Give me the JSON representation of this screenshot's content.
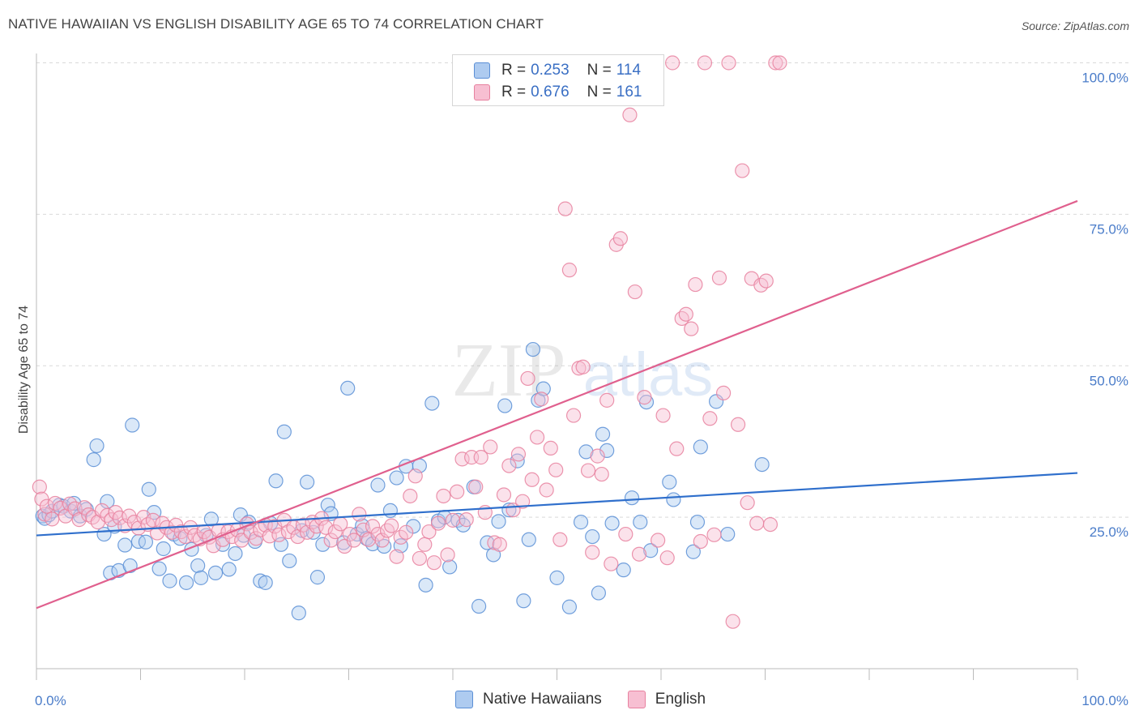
{
  "header": {
    "title": "NATIVE HAWAIIAN VS ENGLISH DISABILITY AGE 65 TO 74 CORRELATION CHART",
    "source": "Source: ZipAtlas.com"
  },
  "watermark": {
    "zip": "ZIP",
    "atlas": "atlas"
  },
  "legend": {
    "rows": [
      {
        "r_label": "R =",
        "r_value": "0.253",
        "n_label": "N =",
        "n_value": "114"
      },
      {
        "r_label": "R =",
        "r_value": "0.676",
        "n_label": "N =",
        "n_value": "161"
      }
    ],
    "bottom": [
      "Native Hawaiians",
      "English"
    ]
  },
  "colors": {
    "blue_fill": "#aecbf0",
    "blue_stroke": "#5b8fd6",
    "blue_line": "#2f6fcc",
    "pink_fill": "#f7bfd2",
    "pink_stroke": "#e7819f",
    "pink_line": "#e0608e",
    "grid": "#d9d9d9",
    "tick_text": "#4a7cc9"
  },
  "chart_data": {
    "type": "scatter",
    "ylabel": "Disability Age 65 to 74",
    "xlabel": "",
    "xlim": [
      0,
      100
    ],
    "ylim": [
      0,
      103
    ],
    "x_tick_labels": [
      "0.0%",
      "100.0%"
    ],
    "y_tick_labels": [
      "25.0%",
      "50.0%",
      "75.0%",
      "100.0%"
    ],
    "y_tick_values": [
      25,
      50,
      75,
      100
    ],
    "series": [
      {
        "name": "Native Hawaiians",
        "color": "#aecbf0",
        "trend": {
          "x": [
            0,
            100
          ],
          "y": [
            22.0,
            32.3
          ]
        },
        "points": [
          [
            0.6,
            25.2
          ],
          [
            0.8,
            24.8
          ],
          [
            1.2,
            25.4
          ],
          [
            1.5,
            26.0
          ],
          [
            2.2,
            27.0
          ],
          [
            2.6,
            26.8
          ],
          [
            3.3,
            26.0
          ],
          [
            3.6,
            27.3
          ],
          [
            4.2,
            25.2
          ],
          [
            4.8,
            26.3
          ],
          [
            5.5,
            34.5
          ],
          [
            5.8,
            36.8
          ],
          [
            6.5,
            22.2
          ],
          [
            6.8,
            27.6
          ],
          [
            7.1,
            15.8
          ],
          [
            7.5,
            23.5
          ],
          [
            7.9,
            16.2
          ],
          [
            8.5,
            20.4
          ],
          [
            9.0,
            17.0
          ],
          [
            9.2,
            40.2
          ],
          [
            9.8,
            21.0
          ],
          [
            10.5,
            20.9
          ],
          [
            10.8,
            29.6
          ],
          [
            11.3,
            25.8
          ],
          [
            11.8,
            16.5
          ],
          [
            12.2,
            19.8
          ],
          [
            12.8,
            14.5
          ],
          [
            13.2,
            22.2
          ],
          [
            13.8,
            21.5
          ],
          [
            14.4,
            14.2
          ],
          [
            14.9,
            19.7
          ],
          [
            15.5,
            17.0
          ],
          [
            15.8,
            15.0
          ],
          [
            16.3,
            22.0
          ],
          [
            16.8,
            24.7
          ],
          [
            17.2,
            15.8
          ],
          [
            17.9,
            20.5
          ],
          [
            18.5,
            16.4
          ],
          [
            19.1,
            19.0
          ],
          [
            19.6,
            25.4
          ],
          [
            19.9,
            22.0
          ],
          [
            20.4,
            24.2
          ],
          [
            21.0,
            21.0
          ],
          [
            21.5,
            14.5
          ],
          [
            22.0,
            14.2
          ],
          [
            22.5,
            24.0
          ],
          [
            23.0,
            31.0
          ],
          [
            23.5,
            20.5
          ],
          [
            23.8,
            39.1
          ],
          [
            24.3,
            17.8
          ],
          [
            25.2,
            9.2
          ],
          [
            25.5,
            22.8
          ],
          [
            26.0,
            30.8
          ],
          [
            26.6,
            22.5
          ],
          [
            27.0,
            15.1
          ],
          [
            27.5,
            20.5
          ],
          [
            28.0,
            27.0
          ],
          [
            28.3,
            25.6
          ],
          [
            29.5,
            20.8
          ],
          [
            29.9,
            46.3
          ],
          [
            30.8,
            22.2
          ],
          [
            31.3,
            23.6
          ],
          [
            31.7,
            21.5
          ],
          [
            32.3,
            20.6
          ],
          [
            32.8,
            30.3
          ],
          [
            33.4,
            20.2
          ],
          [
            34.0,
            26.1
          ],
          [
            34.6,
            31.5
          ],
          [
            35.0,
            20.3
          ],
          [
            35.5,
            33.4
          ],
          [
            36.2,
            23.5
          ],
          [
            36.8,
            33.5
          ],
          [
            37.4,
            13.8
          ],
          [
            38.0,
            43.8
          ],
          [
            38.6,
            24.4
          ],
          [
            39.2,
            25.0
          ],
          [
            39.7,
            16.8
          ],
          [
            40.5,
            24.5
          ],
          [
            41.0,
            23.7
          ],
          [
            42.0,
            30.0
          ],
          [
            42.5,
            10.3
          ],
          [
            43.3,
            20.8
          ],
          [
            43.9,
            18.8
          ],
          [
            44.4,
            24.3
          ],
          [
            45.0,
            43.4
          ],
          [
            45.4,
            26.2
          ],
          [
            46.2,
            34.3
          ],
          [
            46.8,
            11.2
          ],
          [
            47.3,
            21.3
          ],
          [
            47.7,
            52.7
          ],
          [
            48.2,
            44.3
          ],
          [
            48.7,
            46.2
          ],
          [
            50.0,
            15.0
          ],
          [
            51.2,
            10.2
          ],
          [
            52.3,
            24.2
          ],
          [
            52.8,
            35.8
          ],
          [
            53.4,
            21.8
          ],
          [
            54.0,
            12.5
          ],
          [
            54.4,
            38.7
          ],
          [
            54.8,
            36.0
          ],
          [
            55.3,
            24.0
          ],
          [
            56.4,
            16.3
          ],
          [
            57.2,
            28.2
          ],
          [
            58.0,
            24.2
          ],
          [
            58.6,
            44.0
          ],
          [
            59.0,
            19.5
          ],
          [
            60.8,
            30.8
          ],
          [
            61.2,
            27.9
          ],
          [
            63.1,
            19.3
          ],
          [
            63.8,
            36.6
          ],
          [
            63.5,
            24.2
          ],
          [
            65.3,
            44.1
          ],
          [
            66.4,
            22.2
          ],
          [
            69.7,
            33.7
          ]
        ]
      },
      {
        "name": "English",
        "color": "#f7bfd2",
        "trend": {
          "x": [
            0,
            100
          ],
          "y": [
            10.0,
            77.2
          ]
        },
        "points": [
          [
            0.3,
            30.0
          ],
          [
            0.5,
            28.0
          ],
          [
            0.8,
            25.5
          ],
          [
            1.0,
            26.8
          ],
          [
            1.5,
            24.7
          ],
          [
            1.8,
            27.3
          ],
          [
            2.3,
            26.5
          ],
          [
            2.8,
            25.2
          ],
          [
            3.2,
            27.2
          ],
          [
            3.7,
            26.4
          ],
          [
            4.1,
            24.6
          ],
          [
            4.6,
            26.6
          ],
          [
            5.0,
            25.4
          ],
          [
            5.4,
            25.0
          ],
          [
            5.9,
            24.2
          ],
          [
            6.3,
            26.1
          ],
          [
            6.8,
            25.3
          ],
          [
            7.2,
            24.6
          ],
          [
            7.6,
            25.8
          ],
          [
            8.0,
            24.9
          ],
          [
            8.5,
            23.6
          ],
          [
            8.9,
            25.2
          ],
          [
            9.4,
            24.2
          ],
          [
            9.8,
            23.2
          ],
          [
            10.3,
            25.0
          ],
          [
            10.7,
            23.8
          ],
          [
            11.2,
            24.5
          ],
          [
            11.6,
            22.4
          ],
          [
            12.1,
            24.0
          ],
          [
            12.5,
            23.3
          ],
          [
            13.0,
            22.5
          ],
          [
            13.4,
            23.7
          ],
          [
            13.9,
            22.6
          ],
          [
            14.3,
            21.8
          ],
          [
            14.8,
            23.3
          ],
          [
            15.2,
            22.0
          ],
          [
            15.7,
            21.4
          ],
          [
            16.1,
            22.6
          ],
          [
            16.6,
            21.7
          ],
          [
            17.0,
            20.3
          ],
          [
            17.5,
            22.8
          ],
          [
            17.9,
            21.3
          ],
          [
            18.4,
            22.6
          ],
          [
            18.8,
            21.8
          ],
          [
            19.3,
            22.9
          ],
          [
            19.7,
            21.2
          ],
          [
            20.2,
            23.9
          ],
          [
            20.6,
            22.5
          ],
          [
            21.1,
            21.5
          ],
          [
            21.5,
            22.9
          ],
          [
            22.0,
            23.7
          ],
          [
            22.4,
            21.9
          ],
          [
            22.9,
            23.5
          ],
          [
            23.3,
            22.1
          ],
          [
            23.8,
            24.5
          ],
          [
            24.2,
            22.6
          ],
          [
            24.7,
            23.3
          ],
          [
            25.1,
            21.8
          ],
          [
            25.6,
            23.7
          ],
          [
            26.0,
            22.5
          ],
          [
            26.5,
            24.2
          ],
          [
            26.9,
            23.5
          ],
          [
            27.4,
            24.8
          ],
          [
            27.8,
            23.3
          ],
          [
            28.3,
            21.2
          ],
          [
            28.7,
            22.6
          ],
          [
            29.2,
            23.9
          ],
          [
            29.6,
            20.2
          ],
          [
            30.1,
            22.2
          ],
          [
            30.5,
            21.2
          ],
          [
            31.0,
            25.5
          ],
          [
            31.4,
            22.9
          ],
          [
            31.9,
            21.3
          ],
          [
            32.3,
            23.5
          ],
          [
            32.8,
            22.2
          ],
          [
            33.2,
            21.2
          ],
          [
            33.7,
            22.8
          ],
          [
            34.1,
            23.6
          ],
          [
            34.6,
            18.5
          ],
          [
            35.0,
            21.7
          ],
          [
            35.5,
            22.5
          ],
          [
            35.9,
            28.5
          ],
          [
            36.4,
            31.8
          ],
          [
            36.8,
            18.2
          ],
          [
            37.3,
            20.5
          ],
          [
            37.7,
            22.6
          ],
          [
            38.2,
            17.5
          ],
          [
            38.6,
            24.0
          ],
          [
            39.1,
            28.5
          ],
          [
            39.5,
            18.8
          ],
          [
            40.0,
            24.5
          ],
          [
            40.4,
            29.2
          ],
          [
            40.9,
            34.6
          ],
          [
            41.3,
            24.6
          ],
          [
            41.8,
            34.9
          ],
          [
            42.2,
            30.0
          ],
          [
            42.7,
            34.9
          ],
          [
            43.1,
            25.8
          ],
          [
            43.6,
            36.6
          ],
          [
            44.0,
            20.8
          ],
          [
            44.5,
            20.5
          ],
          [
            44.9,
            28.7
          ],
          [
            45.4,
            33.5
          ],
          [
            45.8,
            26.2
          ],
          [
            46.3,
            35.4
          ],
          [
            46.7,
            27.6
          ],
          [
            47.2,
            47.9
          ],
          [
            47.6,
            31.2
          ],
          [
            48.1,
            38.2
          ],
          [
            48.5,
            44.5
          ],
          [
            49.0,
            29.5
          ],
          [
            49.4,
            36.4
          ],
          [
            49.9,
            32.8
          ],
          [
            50.3,
            21.3
          ],
          [
            50.8,
            75.9
          ],
          [
            51.2,
            65.8
          ],
          [
            51.6,
            41.8
          ],
          [
            52.1,
            49.6
          ],
          [
            52.5,
            49.8
          ],
          [
            53.0,
            32.7
          ],
          [
            53.4,
            19.2
          ],
          [
            53.9,
            35.1
          ],
          [
            54.3,
            32.1
          ],
          [
            54.8,
            44.3
          ],
          [
            55.2,
            17.3
          ],
          [
            55.7,
            70.0
          ],
          [
            56.1,
            71.0
          ],
          [
            56.6,
            22.2
          ],
          [
            57.0,
            91.4
          ],
          [
            57.5,
            62.2
          ],
          [
            57.9,
            18.9
          ],
          [
            58.4,
            44.8
          ],
          [
            58.8,
            100.0
          ],
          [
            59.3,
            100.0
          ],
          [
            59.7,
            21.2
          ],
          [
            60.2,
            41.8
          ],
          [
            60.6,
            18.3
          ],
          [
            61.1,
            100.0
          ],
          [
            61.5,
            36.3
          ],
          [
            62.0,
            57.8
          ],
          [
            62.4,
            58.5
          ],
          [
            62.9,
            56.1
          ],
          [
            63.3,
            63.4
          ],
          [
            63.8,
            21.0
          ],
          [
            64.2,
            100.0
          ],
          [
            64.7,
            41.3
          ],
          [
            65.1,
            22.1
          ],
          [
            65.6,
            64.5
          ],
          [
            66.0,
            45.5
          ],
          [
            66.5,
            100.0
          ],
          [
            66.9,
            7.8
          ],
          [
            67.4,
            40.3
          ],
          [
            67.8,
            82.2
          ],
          [
            68.3,
            27.4
          ],
          [
            68.7,
            64.4
          ],
          [
            69.2,
            24.0
          ],
          [
            69.6,
            63.3
          ],
          [
            70.1,
            64.0
          ],
          [
            70.5,
            23.8
          ],
          [
            71.0,
            100.0
          ],
          [
            71.4,
            100.0
          ]
        ]
      }
    ]
  }
}
